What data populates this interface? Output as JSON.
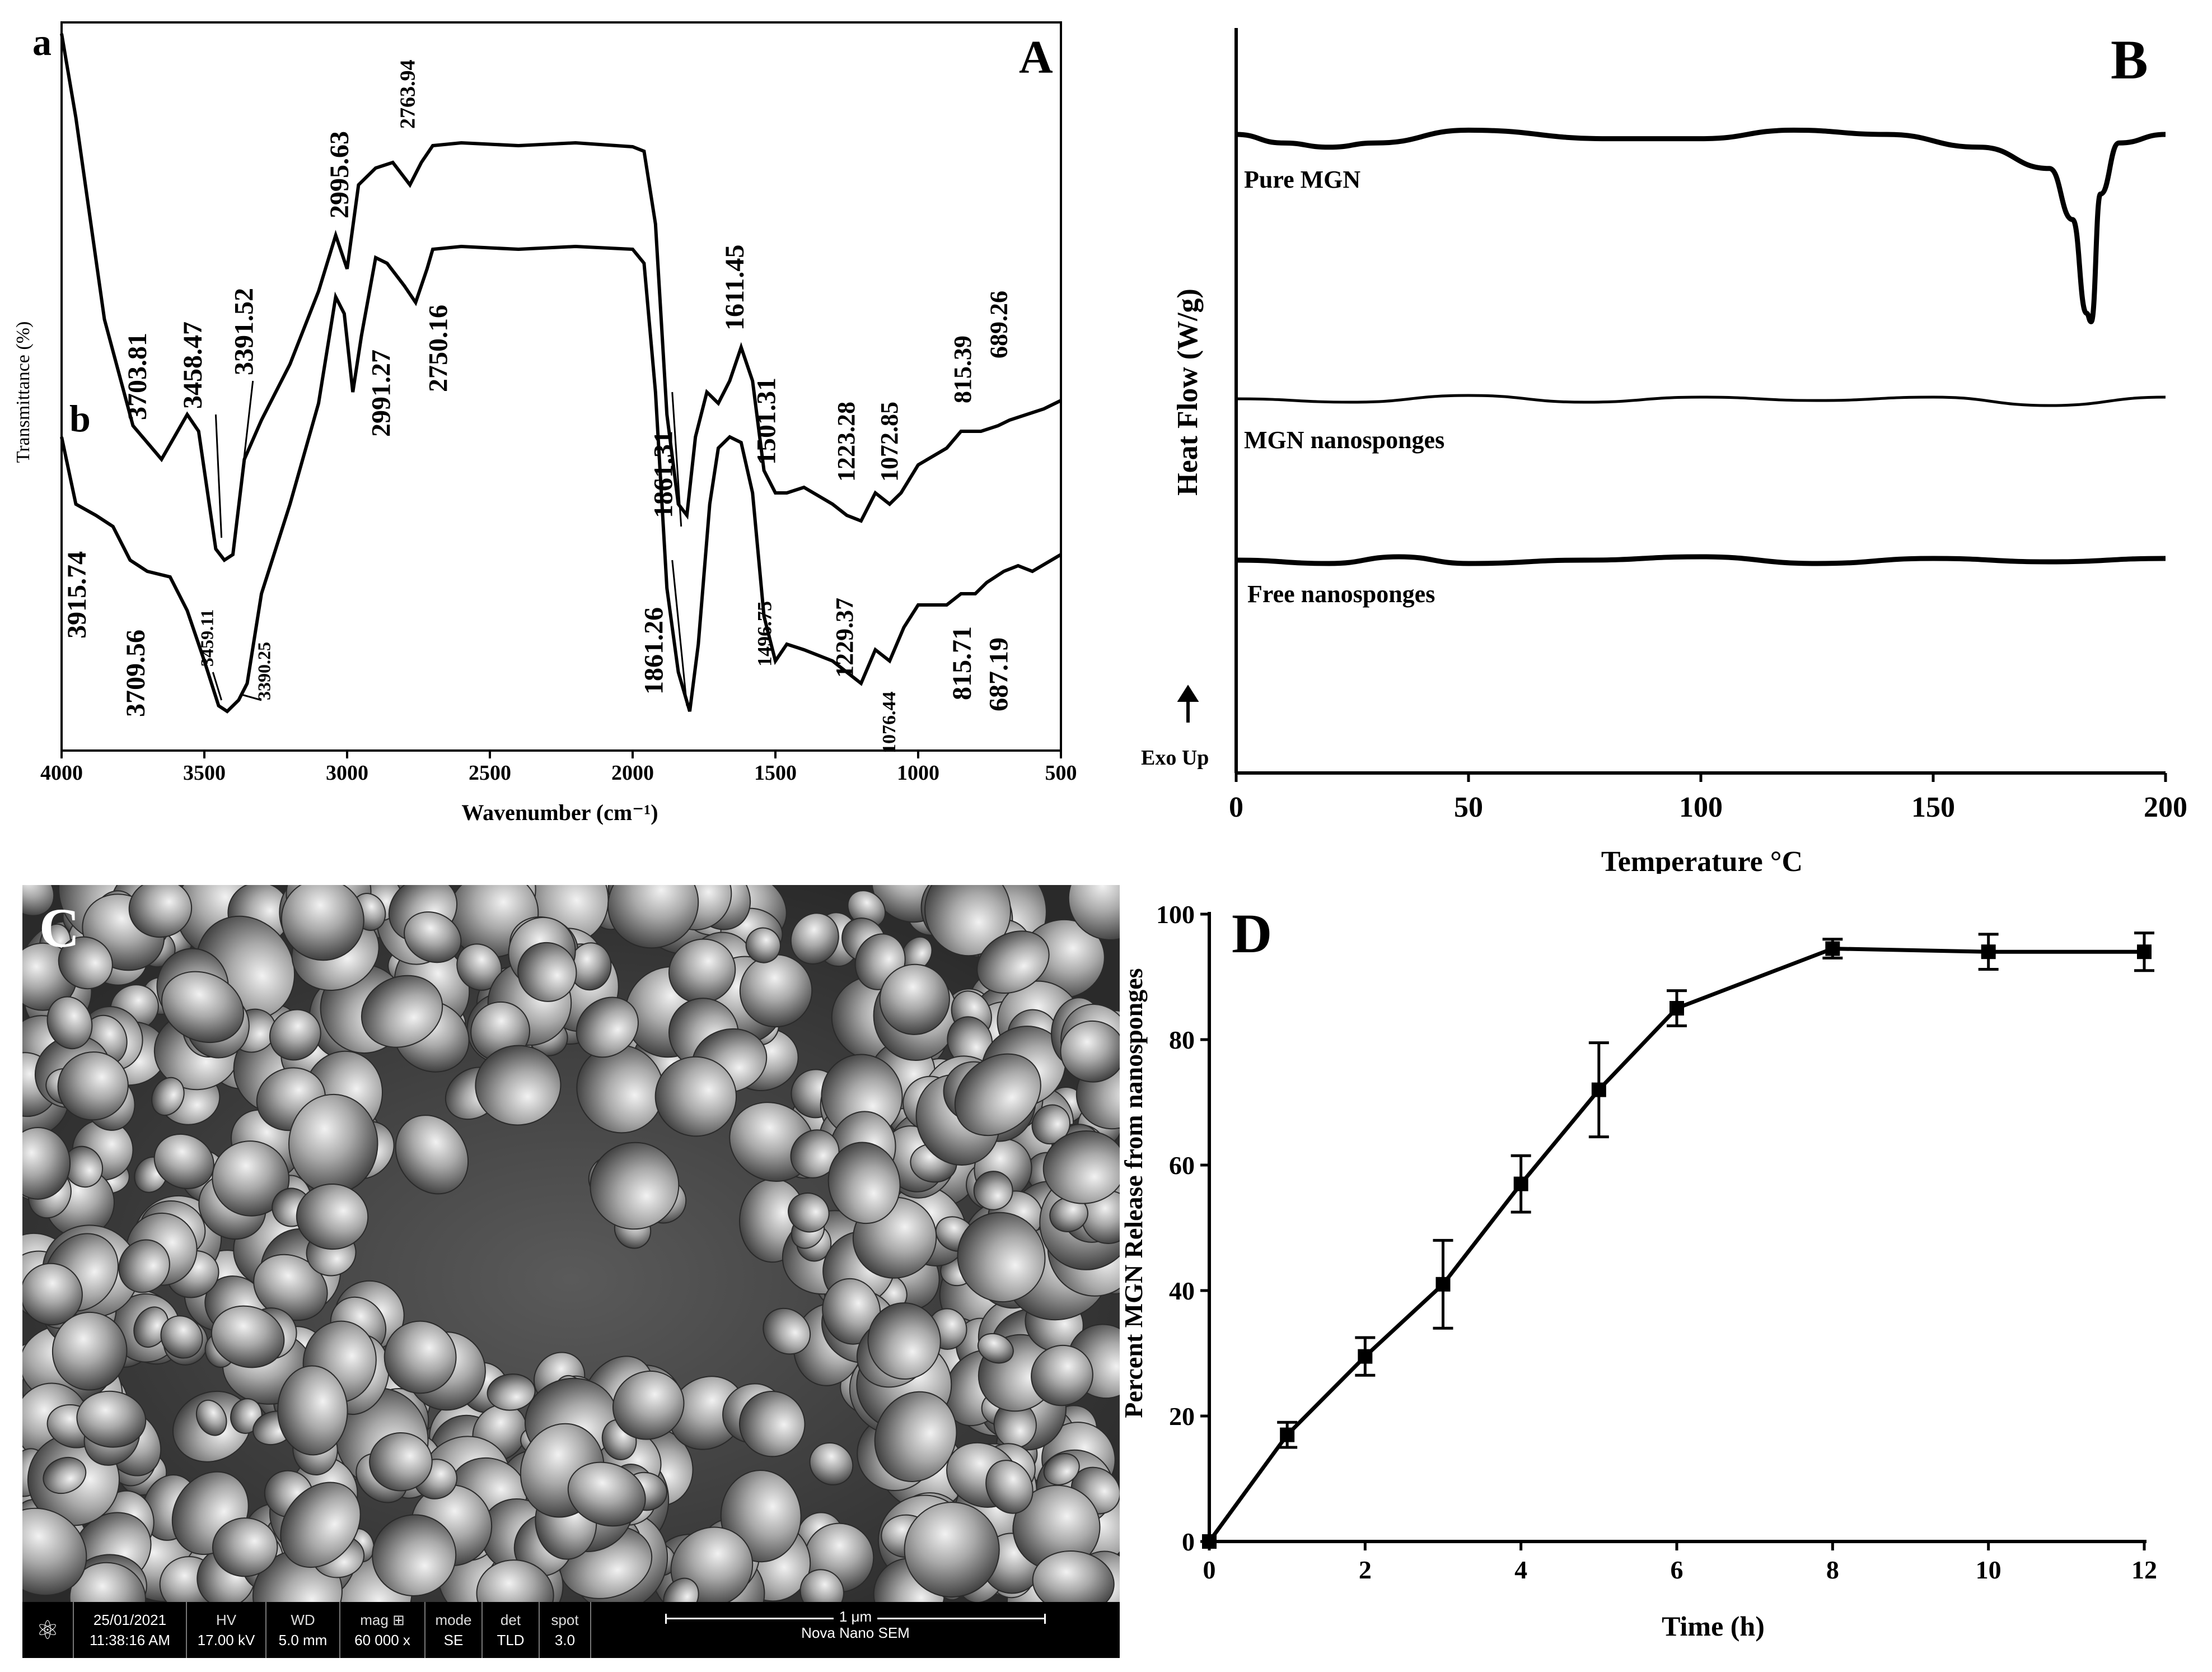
{
  "panels": {
    "A": {
      "letter": "A",
      "xlabel": "Wavenumber (cm⁻¹)",
      "ylabel": "Transmittance (%)",
      "xticks": [
        "4000",
        "3500",
        "3000",
        "2500",
        "2000",
        "1500",
        "1000",
        "500"
      ],
      "curve_labels": [
        "a",
        "b"
      ],
      "peaks_a": [
        "3703.81",
        "3458.47",
        "3391.52",
        "2995.63",
        "2763.94",
        "2750.16",
        "1861.31",
        "1611.45",
        "1501.31",
        "1223.28",
        "1072.85",
        "815.39",
        "689.26"
      ],
      "peaks_b": [
        "3915.74",
        "3709.56",
        "3459.11",
        "3390.25",
        "2991.27",
        "1861.26",
        "1496.75",
        "1229.37",
        "1076.44",
        "815.71",
        "687.19"
      ]
    },
    "B": {
      "letter": "B",
      "xlabel": "Temperature °C",
      "ylabel": "Heat Flow (W/g)",
      "xticks": [
        "0",
        "50",
        "100",
        "150",
        "200"
      ],
      "curves": [
        "Pure MGN",
        "MGN nanosponges",
        "Free nanosponges"
      ],
      "exo_label": "Exo Up"
    },
    "C": {
      "letter": "C",
      "sem": {
        "date": "25/01/2021",
        "time": "11:38:16 AM",
        "hv_h": "HV",
        "hv": "17.00 kV",
        "wd_h": "WD",
        "wd": "5.0 mm",
        "mag_h": "mag ⊞",
        "mag": "60 000 x",
        "mode_h": "mode",
        "mode": "SE",
        "det_h": "det",
        "det": "TLD",
        "spot_h": "spot",
        "spot": "3.0",
        "scale": "1 μm",
        "instrument": "Nova Nano SEM"
      }
    },
    "D": {
      "letter": "D"
    }
  },
  "chart_data": [
    {
      "type": "line",
      "panel": "A",
      "xlabel": "Wavenumber (cm⁻¹)",
      "ylabel": "Transmittance (%)",
      "xlim": [
        4000,
        500
      ],
      "series": [
        {
          "name": "a"
        },
        {
          "name": "b"
        }
      ]
    },
    {
      "type": "line",
      "panel": "B",
      "xlabel": "Temperature °C",
      "ylabel": "Heat Flow (W/g)",
      "xlim": [
        0,
        200
      ],
      "series": [
        {
          "name": "Pure MGN",
          "x": [
            0,
            10,
            20,
            30,
            50,
            80,
            100,
            120,
            140,
            160,
            175,
            180,
            183,
            184,
            186,
            190,
            200
          ],
          "y": [
            0,
            -0.2,
            -0.3,
            -0.2,
            0.1,
            -0.1,
            -0.1,
            0.1,
            0.0,
            -0.3,
            -0.8,
            -2.0,
            -4.2,
            -4.4,
            -1.4,
            -0.2,
            0.0
          ]
        },
        {
          "name": "MGN nanosponges",
          "x": [
            0,
            25,
            50,
            75,
            100,
            125,
            150,
            175,
            200
          ],
          "y": [
            0,
            -0.1,
            0.1,
            -0.1,
            0.05,
            -0.05,
            0.05,
            -0.2,
            0.05
          ]
        },
        {
          "name": "Free nanosponges",
          "x": [
            0,
            20,
            35,
            50,
            75,
            100,
            125,
            150,
            175,
            200
          ],
          "y": [
            0,
            -0.1,
            0.1,
            -0.1,
            0.0,
            0.1,
            -0.1,
            0.05,
            -0.05,
            0.05
          ]
        }
      ]
    },
    {
      "type": "line",
      "panel": "D",
      "xlabel": "Time (h)",
      "ylabel": "Percent MGN Release from nanosponges",
      "xlim": [
        0,
        12
      ],
      "ylim": [
        0,
        100
      ],
      "xticks": [
        0,
        2,
        4,
        6,
        8,
        10,
        12
      ],
      "yticks": [
        0,
        20,
        40,
        60,
        80,
        100
      ],
      "series": [
        {
          "x": [
            0,
            1,
            2,
            3,
            4,
            5,
            6,
            8,
            10,
            12
          ],
          "values": [
            0,
            17,
            29.5,
            41,
            57,
            72,
            85,
            94.5,
            94,
            94
          ],
          "error": [
            0,
            2,
            3,
            7,
            4.5,
            7.5,
            2.8,
            1.5,
            2.8,
            3
          ]
        }
      ]
    }
  ]
}
